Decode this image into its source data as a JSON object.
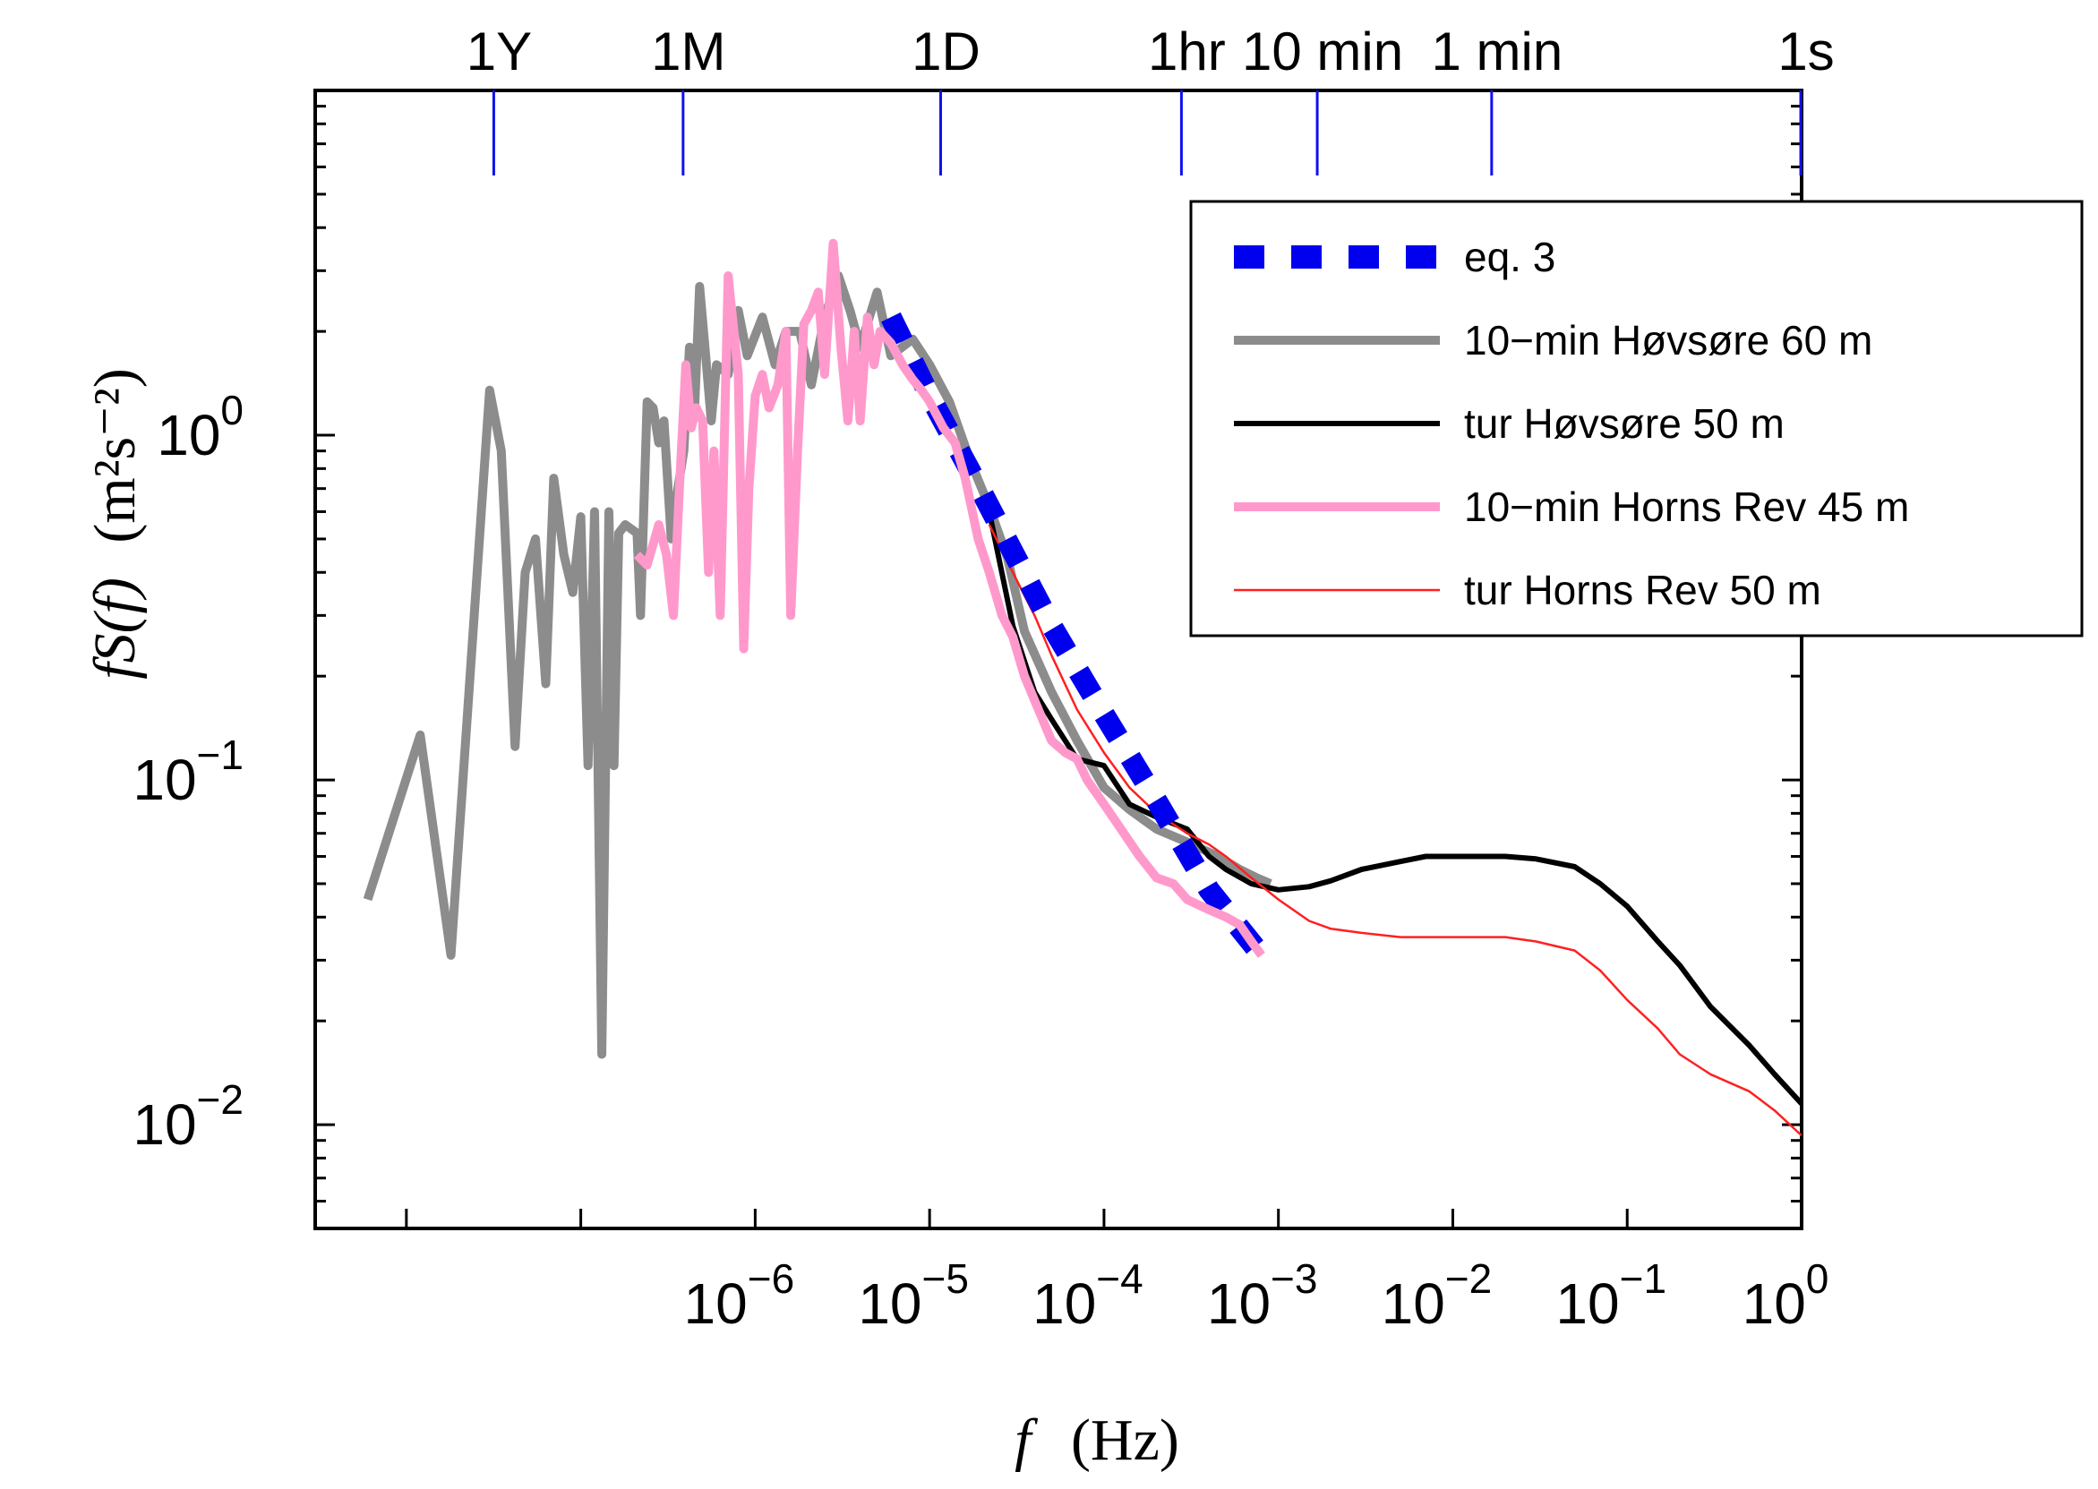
{
  "chart_data": {
    "type": "line",
    "xlabel": "f (Hz)",
    "xlabel_var": "f",
    "xlabel_unit": "(Hz)",
    "ylabel": "fS(f) (m^2 s^-2)",
    "ylabel_func": "fS(f)",
    "ylabel_unit": "(m²s⁻²)",
    "x_scale": "log",
    "y_scale": "log",
    "xlim": [
      3e-09,
      1
    ],
    "ylim": [
      0.005,
      10
    ],
    "grid": false,
    "legend_position": "top-right",
    "x_ticks": [
      {
        "value": 1e-06,
        "base": "10",
        "exp": "−6"
      },
      {
        "value": 1e-05,
        "base": "10",
        "exp": "−5"
      },
      {
        "value": 0.0001,
        "base": "10",
        "exp": "−4"
      },
      {
        "value": 0.001,
        "base": "10",
        "exp": "−3"
      },
      {
        "value": 0.01,
        "base": "10",
        "exp": "−2"
      },
      {
        "value": 0.1,
        "base": "10",
        "exp": "−1"
      },
      {
        "value": 1,
        "base": "10",
        "exp": "0"
      }
    ],
    "y_ticks": [
      {
        "value": 1,
        "base": "10",
        "exp": "0"
      },
      {
        "value": 0.1,
        "base": "10",
        "exp": "−1"
      },
      {
        "value": 0.01,
        "base": "10",
        "exp": "−2"
      }
    ],
    "top_axis": [
      {
        "label": "1Y",
        "value": 3.17e-08
      },
      {
        "label": "1M",
        "value": 3.86e-07
      },
      {
        "label": "1D",
        "value": 1.157e-05
      },
      {
        "label": "1hr",
        "value": 0.000278
      },
      {
        "label": "10 min",
        "value": 0.00167
      },
      {
        "label": "1 min",
        "value": 0.0167
      },
      {
        "label": "1s",
        "value": 1
      }
    ],
    "series": [
      {
        "name": "eq. 3",
        "color": "#0000ee",
        "style": "dashed-thick",
        "x": [
          6e-06,
          1e-05,
          2e-05,
          5e-05,
          0.0001,
          0.0002,
          0.0004,
          0.0008
        ],
        "y": [
          2.2,
          1.3,
          0.68,
          0.28,
          0.155,
          0.087,
          0.048,
          0.031
        ]
      },
      {
        "name": "10−min Høvsøre 60 m",
        "color": "#8c8c8c",
        "style": "solid-thick",
        "x": [
          6e-09,
          1.2e-08,
          1.8e-08,
          3e-08,
          3.5e-08,
          4.2e-08,
          4.8e-08,
          5.5e-08,
          6.3e-08,
          7e-08,
          8e-08,
          9e-08,
          1e-07,
          1.1e-07,
          1.2e-07,
          1.32e-07,
          1.45e-07,
          1.55e-07,
          1.65e-07,
          1.8e-07,
          2.1e-07,
          2.2e-07,
          2.4e-07,
          2.6e-07,
          2.8e-07,
          3e-07,
          3.3e-07,
          3.6e-07,
          3.9e-07,
          4.2e-07,
          4.5e-07,
          4.8e-07,
          5.2e-07,
          5.6e-07,
          6e-07,
          7e-07,
          8e-07,
          9e-07,
          1.1e-06,
          1.3e-06,
          1.5e-06,
          1.8e-06,
          2.1e-06,
          2.5e-06,
          3e-06,
          3.5e-06,
          4e-06,
          5e-06,
          6e-06,
          8e-06,
          1e-05,
          1.3e-05,
          1.7e-05,
          2.2e-05,
          2.8e-05,
          3.5e-05,
          5e-05,
          7e-05,
          0.0001,
          0.00014,
          0.0002,
          0.0003,
          0.00045,
          0.0006,
          0.00075,
          0.0009
        ],
        "y": [
          0.045,
          0.135,
          0.031,
          1.35,
          0.9,
          0.125,
          0.4,
          0.5,
          0.19,
          0.75,
          0.45,
          0.35,
          0.58,
          0.11,
          0.6,
          0.016,
          0.6,
          0.11,
          0.52,
          0.55,
          0.52,
          0.3,
          1.25,
          1.2,
          0.95,
          1.1,
          0.5,
          0.7,
          0.9,
          1.8,
          1.2,
          2.7,
          1.7,
          1.1,
          1.6,
          1.5,
          2.3,
          1.7,
          2.2,
          1.6,
          2.0,
          2.0,
          1.4,
          2.2,
          2.9,
          2.3,
          1.8,
          2.6,
          1.7,
          1.9,
          1.6,
          1.25,
          0.85,
          0.62,
          0.44,
          0.27,
          0.18,
          0.13,
          0.095,
          0.082,
          0.072,
          0.066,
          0.06,
          0.055,
          0.052,
          0.05
        ]
      },
      {
        "name": "tur Høvsøre 50 m",
        "color": "#000000",
        "style": "solid-medium",
        "x": [
          2.2e-05,
          3e-05,
          4e-05,
          5e-05,
          7e-05,
          0.0001,
          0.00014,
          0.0002,
          0.0003,
          0.0004,
          0.0005,
          0.0007,
          0.001,
          0.0015,
          0.002,
          0.003,
          0.005,
          0.007,
          0.01,
          0.015,
          0.02,
          0.03,
          0.05,
          0.07,
          0.1,
          0.15,
          0.2,
          0.3,
          0.5,
          0.7,
          1
        ],
        "y": [
          0.6,
          0.28,
          0.18,
          0.15,
          0.115,
          0.11,
          0.085,
          0.078,
          0.072,
          0.06,
          0.055,
          0.05,
          0.048,
          0.049,
          0.051,
          0.055,
          0.058,
          0.06,
          0.06,
          0.06,
          0.06,
          0.059,
          0.056,
          0.05,
          0.043,
          0.034,
          0.029,
          0.022,
          0.017,
          0.014,
          0.0115
        ]
      },
      {
        "name": "10−min Horns Rev 45 m",
        "color": "#ff99cc",
        "style": "solid-thick",
        "x": [
          2.1e-07,
          2.4e-07,
          2.8e-07,
          3.1e-07,
          3.4e-07,
          3.7e-07,
          4e-07,
          4.3e-07,
          4.6e-07,
          5e-07,
          5.4e-07,
          5.8e-07,
          6.3e-07,
          7e-07,
          8e-07,
          8.6e-07,
          9.2e-07,
          1e-06,
          1.1e-06,
          1.2e-06,
          1.35e-06,
          1.5e-06,
          1.6e-06,
          1.75e-06,
          1.9e-06,
          2.1e-06,
          2.3e-06,
          2.5e-06,
          2.8e-06,
          3.1e-06,
          3.4e-06,
          3.7e-06,
          4e-06,
          4.4e-06,
          4.8e-06,
          5.2e-06,
          6e-06,
          7e-06,
          8e-06,
          9e-06,
          1e-05,
          1.2e-05,
          1.4e-05,
          1.6e-05,
          1.9e-05,
          2.2e-05,
          2.6e-05,
          3e-05,
          3.5e-05,
          4e-05,
          5e-05,
          6e-05,
          7e-05,
          8e-05,
          0.0001,
          0.00013,
          0.00016,
          0.0002,
          0.00025,
          0.0003,
          0.0004,
          0.0005,
          0.0006,
          0.0007,
          0.0008
        ],
        "y": [
          0.45,
          0.42,
          0.55,
          0.45,
          0.3,
          0.75,
          1.6,
          1.05,
          1.2,
          1.1,
          0.4,
          0.9,
          0.3,
          2.9,
          1.5,
          0.24,
          0.7,
          1.3,
          1.5,
          1.2,
          1.4,
          2.0,
          0.3,
          0.9,
          2.1,
          2.3,
          2.6,
          1.5,
          3.6,
          1.8,
          1.1,
          2.0,
          1.1,
          2.2,
          1.6,
          2.0,
          1.85,
          1.6,
          1.45,
          1.35,
          1.25,
          1.05,
          0.95,
          0.75,
          0.5,
          0.4,
          0.3,
          0.26,
          0.2,
          0.17,
          0.13,
          0.12,
          0.115,
          0.1,
          0.085,
          0.07,
          0.06,
          0.052,
          0.05,
          0.045,
          0.042,
          0.04,
          0.038,
          0.034,
          0.031
        ]
      },
      {
        "name": "tur Horns Rev 50 m",
        "color": "#ff2020",
        "style": "solid-thin",
        "x": [
          2.2e-05,
          3e-05,
          4e-05,
          5e-05,
          7e-05,
          0.0001,
          0.00014,
          0.0002,
          0.0003,
          0.0004,
          0.0005,
          0.0007,
          0.001,
          0.0015,
          0.002,
          0.003,
          0.005,
          0.007,
          0.01,
          0.015,
          0.02,
          0.03,
          0.05,
          0.07,
          0.1,
          0.15,
          0.2,
          0.3,
          0.5,
          0.7,
          1
        ],
        "y": [
          0.55,
          0.4,
          0.3,
          0.23,
          0.16,
          0.12,
          0.095,
          0.08,
          0.07,
          0.065,
          0.06,
          0.052,
          0.045,
          0.039,
          0.037,
          0.036,
          0.035,
          0.035,
          0.035,
          0.035,
          0.035,
          0.034,
          0.032,
          0.028,
          0.023,
          0.019,
          0.016,
          0.014,
          0.0125,
          0.011,
          0.0093
        ]
      }
    ]
  }
}
